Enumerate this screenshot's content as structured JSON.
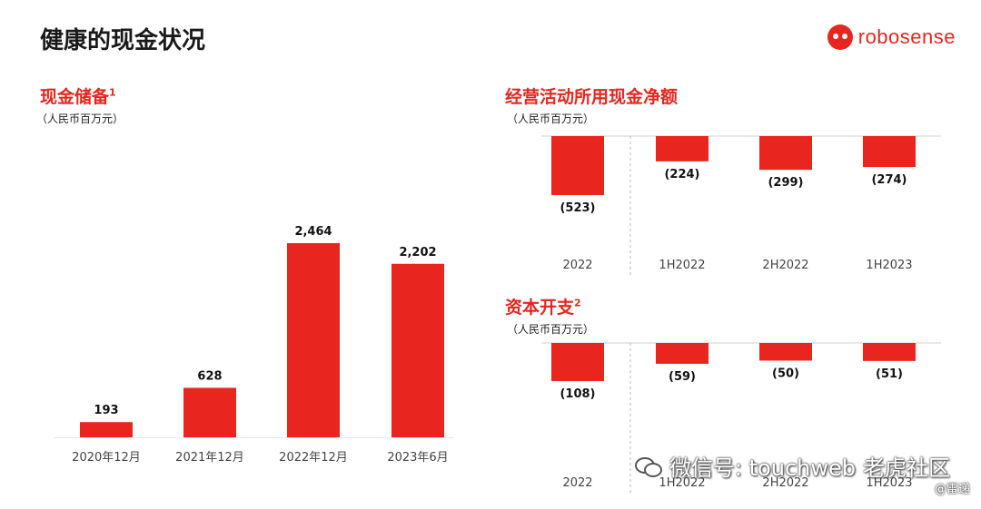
{
  "page": {
    "title": "健康的现金状况",
    "logo_text": "robosense",
    "watermark": "微信号: touchweb",
    "watermark_brand": "老虎社区",
    "watermark_sub": "@雷递"
  },
  "colors": {
    "bar": "#e8251e",
    "title": "#1a1a1a",
    "accent": "#e8251e"
  },
  "chart_data": [
    {
      "type": "bar",
      "title": "现金储备",
      "title_sup": "1",
      "unit": "（人民币百万元）",
      "categories": [
        "2020年12月",
        "2021年12月",
        "2022年12月",
        "2023年6月"
      ],
      "values": [
        193,
        628,
        2464,
        2202
      ],
      "labels": [
        "193",
        "628",
        "2,464",
        "2,202"
      ],
      "ylim": [
        0,
        2600
      ]
    },
    {
      "type": "bar",
      "title": "经营活动所用现金净额",
      "title_sup": "",
      "unit": "（人民币百万元）",
      "categories": [
        "2022",
        "1H2022",
        "2H2022",
        "1H2023"
      ],
      "values": [
        -523,
        -224,
        -299,
        -274
      ],
      "labels": [
        "(523)",
        "(224)",
        "(299)",
        "(274)"
      ],
      "ylim": [
        -523,
        0
      ]
    },
    {
      "type": "bar",
      "title": "资本开支",
      "title_sup": "2",
      "unit": "（人民币百万元）",
      "categories": [
        "2022",
        "1H2022",
        "2H2022",
        "1H2023"
      ],
      "values": [
        -108,
        -59,
        -50,
        -51
      ],
      "labels": [
        "(108)",
        "(59)",
        "(50)",
        "(51)"
      ],
      "ylim": [
        -108,
        0
      ]
    }
  ]
}
